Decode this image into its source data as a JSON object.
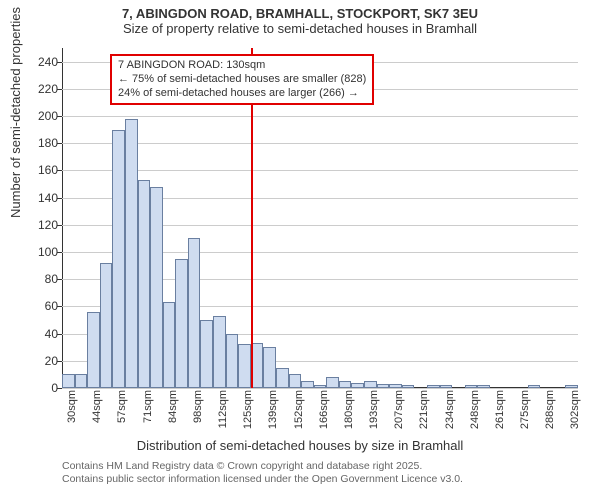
{
  "title": {
    "line1": "7, ABINGDON ROAD, BRAMHALL, STOCKPORT, SK7 3EU",
    "line2": "Size of property relative to semi-detached houses in Bramhall"
  },
  "y_axis": {
    "label": "Number of semi-detached properties",
    "ticks": [
      0,
      20,
      40,
      60,
      80,
      100,
      120,
      140,
      160,
      180,
      200,
      220,
      240
    ],
    "min": 0,
    "max": 250
  },
  "x_axis": {
    "label": "Distribution of semi-detached houses by size in Bramhall",
    "tick_labels": [
      "30sqm",
      "44sqm",
      "57sqm",
      "71sqm",
      "84sqm",
      "98sqm",
      "112sqm",
      "125sqm",
      "139sqm",
      "152sqm",
      "166sqm",
      "180sqm",
      "193sqm",
      "207sqm",
      "221sqm",
      "234sqm",
      "248sqm",
      "261sqm",
      "275sqm",
      "288sqm",
      "302sqm"
    ]
  },
  "bars": {
    "type": "histogram",
    "bar_fill": "#cfdcf0",
    "bar_border": "#6a7fa0",
    "values": [
      10,
      10,
      56,
      92,
      190,
      198,
      153,
      148,
      63,
      95,
      110,
      50,
      53,
      40,
      32,
      33,
      30,
      15,
      10,
      5,
      2,
      8,
      5,
      4,
      5,
      3,
      3,
      2,
      0,
      2,
      2,
      0,
      2,
      2,
      0,
      0,
      0,
      2,
      0,
      0,
      2
    ]
  },
  "reference": {
    "value_index": 15,
    "color": "#e00000",
    "annotation": {
      "line1": "7 ABINGDON ROAD: 130sqm",
      "line2": "← 75% of semi-detached houses are smaller (828)",
      "line3": "24% of semi-detached houses are larger (266) →"
    }
  },
  "footer": {
    "line1": "Contains HM Land Registry data © Crown copyright and database right 2025.",
    "line2": "Contains public sector information licensed under the Open Government Licence v3.0."
  },
  "background_color": "#ffffff",
  "grid_color": "#cccccc"
}
